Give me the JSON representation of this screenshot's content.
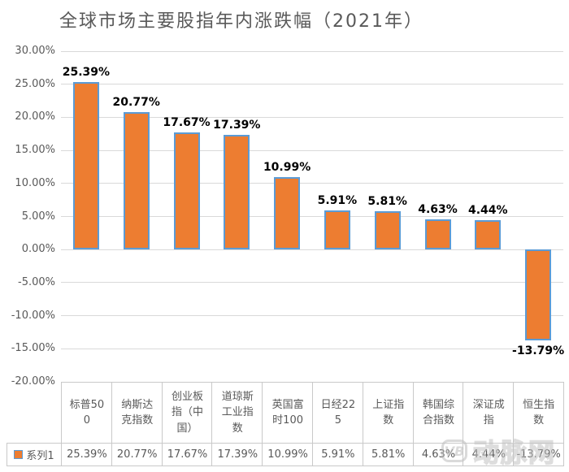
{
  "chart_data": {
    "type": "bar",
    "title": "全球市场主要股指年内涨跌幅（2021年）",
    "categories": [
      "标普500",
      "纳斯达克指数",
      "创业板指（中国）",
      "道琼斯工业指数",
      "英国富时100",
      "日经225",
      "上证指数",
      "韩国综合指数",
      "深证成指",
      "恒生指数"
    ],
    "series": [
      {
        "name": "系列1",
        "values": [
          25.39,
          20.77,
          17.67,
          17.39,
          10.99,
          5.91,
          5.81,
          4.63,
          4.44,
          -13.79
        ]
      }
    ],
    "value_labels": [
      "25.39%",
      "20.77%",
      "17.67%",
      "17.39%",
      "10.99%",
      "5.91%",
      "5.81%",
      "4.63%",
      "4.44%",
      "-13.79%"
    ],
    "ylim": [
      -20,
      30
    ],
    "ytick_step": 5,
    "ytick_labels": [
      "30.00%",
      "25.00%",
      "20.00%",
      "15.00%",
      "10.00%",
      "5.00%",
      "0.00%",
      "-5.00%",
      "-10.00%",
      "-15.00%",
      "-20.00%"
    ],
    "grid": true,
    "legend_position": "bottom-data-table",
    "colors": {
      "bar_fill": "#ED7D31",
      "bar_border": "#5B9BD5",
      "gridline": "#D9D9D9",
      "axis_text": "#595959",
      "title_text": "#595959",
      "table_border": "#C9C9C9",
      "table_text": "#595959",
      "data_label": "#000000"
    }
  },
  "watermark": {
    "logo_text": "VB",
    "text": "动脉网"
  }
}
